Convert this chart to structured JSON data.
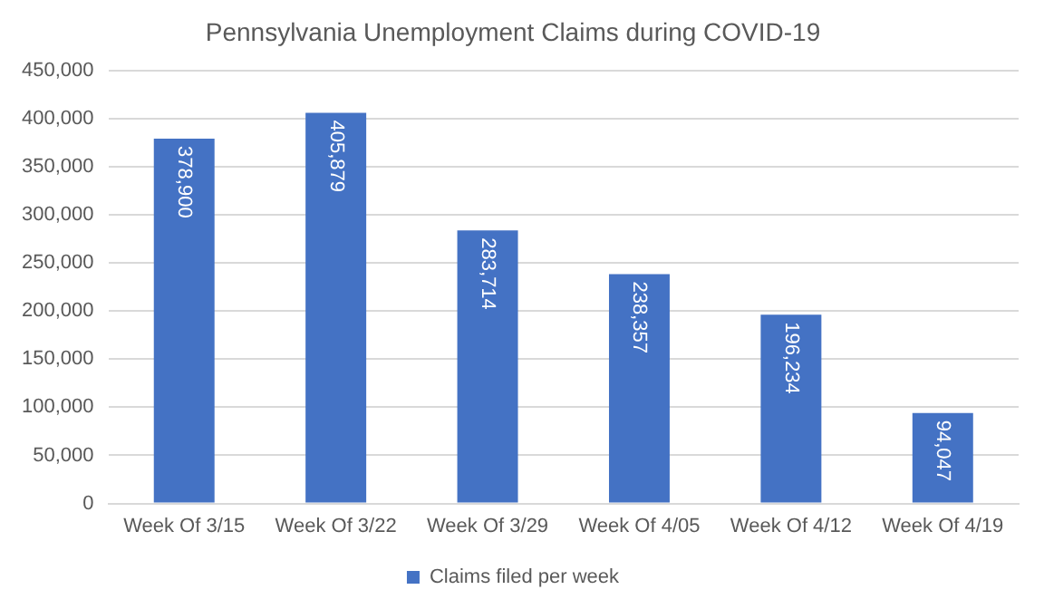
{
  "chart_data": {
    "type": "bar",
    "title": "Pennsylvania Unemployment Claims during COVID-19",
    "categories": [
      "Week Of 3/15",
      "Week Of 3/22",
      "Week Of 3/29",
      "Week Of 4/05",
      "Week Of 4/12",
      "Week Of 4/19"
    ],
    "series": [
      {
        "name": "Claims filed per week",
        "color": "#4472c4",
        "values": [
          378900,
          405879,
          283714,
          238357,
          196234,
          94047
        ],
        "value_labels": [
          "378,900",
          "405,879",
          "283,714",
          "238,357",
          "196,234",
          "94,047"
        ]
      }
    ],
    "ylim": [
      0,
      450000
    ],
    "yticks": [
      0,
      {
        "value": 50000,
        "label": "50,000"
      },
      {
        "value": 100000,
        "label": "100,000"
      },
      {
        "value": 150000,
        "label": "150,000"
      },
      {
        "value": 200000,
        "label": "200,000"
      },
      {
        "value": 250000,
        "label": "250,000"
      },
      {
        "value": 300000,
        "label": "300,000"
      },
      {
        "value": 350000,
        "label": "350,000"
      },
      {
        "value": 400000,
        "label": "400,000"
      },
      {
        "value": 450000,
        "label": "450,000"
      }
    ],
    "grid": "y",
    "legend": "bottom"
  }
}
